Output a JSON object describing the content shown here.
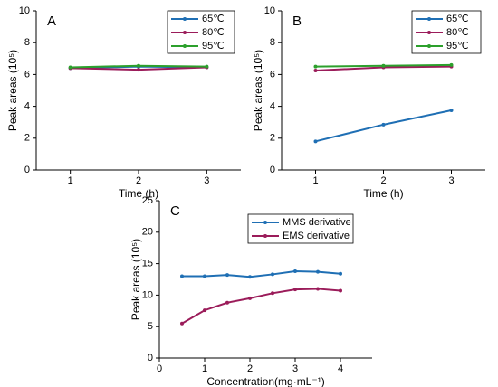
{
  "chart_data": [
    {
      "type": "line",
      "panel_label": "A",
      "ylabel": "Peak areas (10⁵)",
      "xlabel": "Time (h)",
      "x": [
        1,
        2,
        3
      ],
      "xlim": [
        0.5,
        3.5
      ],
      "xticks": [
        1,
        2,
        3
      ],
      "ylim": [
        0,
        10
      ],
      "yticks": [
        0,
        2,
        4,
        6,
        8,
        10
      ],
      "legend": "upper right",
      "series": [
        {
          "name": "65℃",
          "color": "#1f6fb4",
          "values": [
            6.4,
            6.5,
            6.45
          ]
        },
        {
          "name": "80℃",
          "color": "#9b1c5a",
          "values": [
            6.4,
            6.3,
            6.45
          ]
        },
        {
          "name": "95℃",
          "color": "#2ca02c",
          "values": [
            6.45,
            6.55,
            6.5
          ]
        }
      ]
    },
    {
      "type": "line",
      "panel_label": "B",
      "ylabel": "Peak areas (10⁵)",
      "xlabel": "Time (h)",
      "x": [
        1,
        2,
        3
      ],
      "xlim": [
        0.5,
        3.5
      ],
      "xticks": [
        1,
        2,
        3
      ],
      "ylim": [
        0,
        10
      ],
      "yticks": [
        0,
        2,
        4,
        6,
        8,
        10
      ],
      "legend": "upper right",
      "series": [
        {
          "name": "65℃",
          "color": "#1f6fb4",
          "values": [
            1.8,
            2.85,
            3.75
          ]
        },
        {
          "name": "80℃",
          "color": "#9b1c5a",
          "values": [
            6.25,
            6.45,
            6.5
          ]
        },
        {
          "name": "95℃",
          "color": "#2ca02c",
          "values": [
            6.5,
            6.55,
            6.6
          ]
        }
      ]
    },
    {
      "type": "line",
      "panel_label": "C",
      "ylabel": "Peak areas (10⁵)",
      "xlabel": "Concentration(mg·mL⁻¹)",
      "x": [
        0.5,
        1,
        1.5,
        2,
        2.5,
        3,
        3.5,
        4
      ],
      "xlim": [
        0,
        4.7
      ],
      "xticks": [
        0,
        1,
        2,
        3,
        4
      ],
      "ylim": [
        0,
        25
      ],
      "yticks": [
        0,
        5,
        10,
        15,
        20,
        25
      ],
      "legend": "upper center",
      "series": [
        {
          "name": "MMS derivative",
          "color": "#1f6fb4",
          "values": [
            13,
            13,
            13.2,
            12.9,
            13.3,
            13.8,
            13.7,
            13.4
          ]
        },
        {
          "name": "EMS derivative",
          "color": "#9b1c5a",
          "values": [
            5.5,
            7.6,
            8.8,
            9.5,
            10.3,
            10.9,
            11,
            10.7
          ]
        }
      ]
    }
  ]
}
